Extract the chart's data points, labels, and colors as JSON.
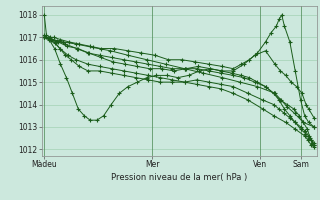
{
  "bg_color": "#cce8dd",
  "grid_color": "#99ccaa",
  "line_color": "#1a5c1a",
  "title": "Pression niveau de la mer( hPa )",
  "ylabel_values": [
    1012,
    1013,
    1014,
    1015,
    1016,
    1017,
    1018
  ],
  "xtick_labels": [
    "Màdeu",
    "Mer",
    "Ven",
    "Sam"
  ],
  "xtick_positions": [
    0.0,
    0.4,
    0.8,
    0.95
  ],
  "xlim": [
    -0.01,
    1.01
  ],
  "ylim": [
    1011.7,
    1018.4
  ],
  "lines": [
    {
      "x": [
        0.0,
        0.008,
        0.02,
        0.035,
        0.06,
        0.09,
        0.13,
        0.17,
        0.21,
        0.26,
        0.31,
        0.36,
        0.41,
        0.46,
        0.51,
        0.56,
        0.61,
        0.66,
        0.7,
        0.73,
        0.76,
        0.79,
        0.82,
        0.84,
        0.86,
        0.87,
        0.88,
        0.89,
        0.91,
        0.93,
        0.95,
        0.965,
        0.98,
        1.0
      ],
      "y": [
        1018.0,
        1017.1,
        1017.0,
        1017.0,
        1016.9,
        1016.8,
        1016.7,
        1016.6,
        1016.5,
        1016.5,
        1016.4,
        1016.3,
        1016.2,
        1016.0,
        1016.0,
        1015.9,
        1015.8,
        1015.7,
        1015.6,
        1015.8,
        1016.0,
        1016.3,
        1016.8,
        1017.2,
        1017.5,
        1017.8,
        1018.0,
        1017.5,
        1016.8,
        1015.5,
        1014.2,
        1013.5,
        1013.2,
        1013.0
      ]
    },
    {
      "x": [
        0.0,
        0.008,
        0.025,
        0.05,
        0.085,
        0.125,
        0.165,
        0.21,
        0.255,
        0.3,
        0.345,
        0.39,
        0.435,
        0.48,
        0.525,
        0.57,
        0.615,
        0.66,
        0.7,
        0.74,
        0.78,
        0.82,
        0.855,
        0.875,
        0.895,
        0.915,
        0.935,
        0.955,
        0.97,
        0.98,
        1.0
      ],
      "y": [
        1017.1,
        1017.0,
        1016.9,
        1016.8,
        1016.6,
        1016.5,
        1016.3,
        1016.1,
        1015.9,
        1015.8,
        1015.7,
        1015.6,
        1015.6,
        1015.5,
        1015.6,
        1015.7,
        1015.6,
        1015.5,
        1015.5,
        1015.8,
        1016.2,
        1016.4,
        1015.8,
        1015.5,
        1015.3,
        1015.0,
        1014.8,
        1014.5,
        1014.0,
        1013.8,
        1013.4
      ]
    },
    {
      "x": [
        0.0,
        0.018,
        0.038,
        0.06,
        0.082,
        0.104,
        0.126,
        0.148,
        0.17,
        0.195,
        0.22,
        0.248,
        0.278,
        0.31,
        0.345,
        0.38,
        0.415,
        0.455,
        0.495,
        0.535,
        0.575,
        0.615,
        0.655,
        0.695,
        0.73,
        0.76,
        0.79,
        0.82,
        0.85,
        0.875,
        0.9,
        0.925,
        0.945,
        0.96,
        0.975,
        0.985,
        0.993,
        1.0
      ],
      "y": [
        1017.0,
        1016.9,
        1016.5,
        1015.8,
        1015.2,
        1014.5,
        1013.8,
        1013.5,
        1013.3,
        1013.3,
        1013.5,
        1014.0,
        1014.5,
        1014.8,
        1015.0,
        1015.2,
        1015.3,
        1015.3,
        1015.2,
        1015.3,
        1015.5,
        1015.6,
        1015.5,
        1015.4,
        1015.3,
        1015.2,
        1015.0,
        1014.8,
        1014.5,
        1014.2,
        1014.0,
        1013.8,
        1013.5,
        1013.2,
        1012.9,
        1012.5,
        1012.3,
        1012.2
      ]
    },
    {
      "x": [
        0.0,
        0.018,
        0.038,
        0.058,
        0.078,
        0.1,
        0.13,
        0.162,
        0.205,
        0.25,
        0.295,
        0.34,
        0.385,
        0.43,
        0.475,
        0.52,
        0.565,
        0.61,
        0.655,
        0.7,
        0.755,
        0.81,
        0.85,
        0.87,
        0.89,
        0.91,
        0.93,
        0.95,
        0.968,
        0.98,
        0.99,
        1.0
      ],
      "y": [
        1017.0,
        1016.95,
        1016.8,
        1016.5,
        1016.2,
        1016.0,
        1015.7,
        1015.5,
        1015.5,
        1015.4,
        1015.3,
        1015.2,
        1015.1,
        1015.0,
        1015.0,
        1015.0,
        1015.1,
        1015.0,
        1014.9,
        1014.8,
        1014.5,
        1014.2,
        1014.0,
        1013.8,
        1013.6,
        1013.4,
        1013.2,
        1013.0,
        1012.8,
        1012.6,
        1012.4,
        1012.2
      ]
    },
    {
      "x": [
        0.0,
        0.018,
        0.048,
        0.078,
        0.12,
        0.162,
        0.205,
        0.25,
        0.295,
        0.34,
        0.385,
        0.43,
        0.475,
        0.52,
        0.565,
        0.61,
        0.655,
        0.7,
        0.74,
        0.78,
        0.82,
        0.85,
        0.87,
        0.89,
        0.91,
        0.93,
        0.95,
        0.968,
        0.98,
        0.99,
        1.0
      ],
      "y": [
        1017.0,
        1016.95,
        1016.85,
        1016.7,
        1016.5,
        1016.3,
        1016.2,
        1016.1,
        1016.0,
        1015.9,
        1015.8,
        1015.7,
        1015.6,
        1015.6,
        1015.6,
        1015.5,
        1015.4,
        1015.3,
        1015.2,
        1015.0,
        1014.8,
        1014.5,
        1014.2,
        1013.8,
        1013.5,
        1013.2,
        1012.9,
        1012.7,
        1012.5,
        1012.4,
        1012.3
      ]
    },
    {
      "x": [
        0.0,
        0.018,
        0.038,
        0.058,
        0.088,
        0.118,
        0.162,
        0.205,
        0.25,
        0.295,
        0.34,
        0.385,
        0.43,
        0.475,
        0.52,
        0.565,
        0.61,
        0.655,
        0.7,
        0.755,
        0.81,
        0.85,
        0.895,
        0.93,
        0.965,
        0.978,
        0.988,
        1.0
      ],
      "y": [
        1017.0,
        1016.92,
        1016.75,
        1016.5,
        1016.2,
        1016.0,
        1015.8,
        1015.7,
        1015.6,
        1015.5,
        1015.4,
        1015.3,
        1015.2,
        1015.1,
        1015.0,
        1014.9,
        1014.8,
        1014.7,
        1014.5,
        1014.2,
        1013.8,
        1013.5,
        1013.2,
        1012.9,
        1012.6,
        1012.4,
        1012.2,
        1012.1
      ]
    },
    {
      "x": [
        0.0,
        0.028,
        0.068,
        0.118,
        0.18,
        0.245,
        0.31,
        0.38,
        0.45,
        0.52,
        0.59,
        0.66,
        0.725,
        0.79,
        0.855,
        0.878,
        0.9,
        0.928,
        0.96,
        1.0
      ],
      "y": [
        1017.0,
        1016.9,
        1016.8,
        1016.7,
        1016.55,
        1016.4,
        1016.2,
        1016.0,
        1015.8,
        1015.6,
        1015.4,
        1015.2,
        1015.0,
        1014.8,
        1014.5,
        1014.2,
        1013.9,
        1013.6,
        1013.2,
        1013.0
      ]
    }
  ]
}
